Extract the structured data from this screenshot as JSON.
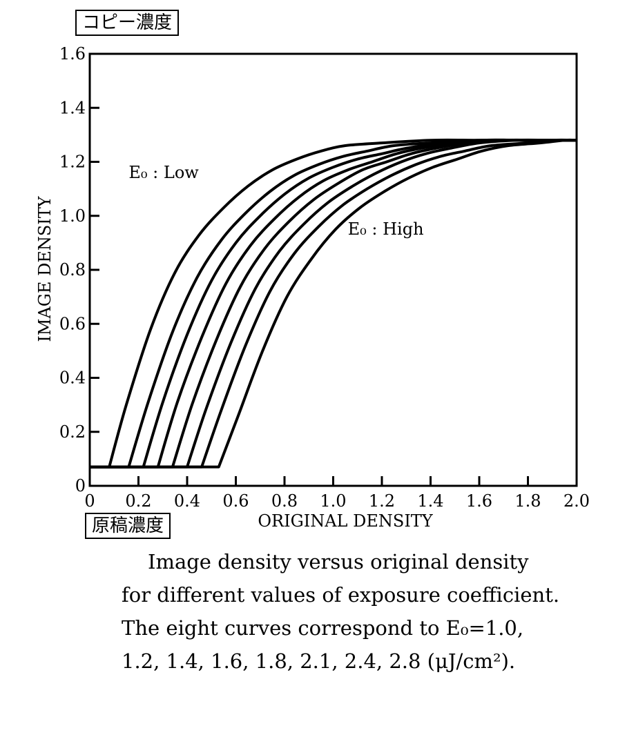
{
  "chart_data": {
    "type": "line",
    "ylabel": "IMAGE DENSITY",
    "xlabel": "ORIGINAL DENSITY",
    "ylabel_jp": "コピー濃度",
    "xlabel_jp": "原稿濃度",
    "xlim": [
      0,
      2.0
    ],
    "ylim": [
      0,
      1.6
    ],
    "x_ticks": [
      "0",
      "0.2",
      "0.4",
      "0.6",
      "0.8",
      "1.0",
      "1.2",
      "1.4",
      "1.6",
      "1.8",
      "2.0"
    ],
    "y_ticks": [
      "0",
      "0.2",
      "0.4",
      "0.6",
      "0.8",
      "1.0",
      "1.2",
      "1.4",
      "1.6"
    ],
    "grid": false,
    "annotations": [
      {
        "text": "E₀ : Low",
        "x": 0.16,
        "y": 1.14
      },
      {
        "text": "E₀ : High",
        "x": 1.06,
        "y": 0.93
      }
    ],
    "series": [
      {
        "x": [
          0,
          0.08,
          0.15,
          0.25,
          0.35,
          0.45,
          0.55,
          0.65,
          0.75,
          0.85,
          0.95,
          1.05,
          1.2,
          1.4,
          1.6,
          1.8,
          2.0
        ],
        "values": [
          0.07,
          0.07,
          0.3,
          0.58,
          0.79,
          0.93,
          1.03,
          1.11,
          1.17,
          1.21,
          1.24,
          1.26,
          1.27,
          1.28,
          1.28,
          1.28,
          1.28
        ]
      },
      {
        "x": [
          0,
          0.16,
          0.24,
          0.34,
          0.44,
          0.54,
          0.64,
          0.74,
          0.84,
          0.94,
          1.04,
          1.14,
          1.25,
          1.4,
          1.6,
          1.8,
          2.0
        ],
        "values": [
          0.07,
          0.07,
          0.31,
          0.57,
          0.77,
          0.91,
          1.01,
          1.09,
          1.15,
          1.19,
          1.22,
          1.24,
          1.26,
          1.27,
          1.28,
          1.28,
          1.28
        ]
      },
      {
        "x": [
          0,
          0.22,
          0.3,
          0.4,
          0.5,
          0.6,
          0.7,
          0.8,
          0.9,
          1.0,
          1.1,
          1.2,
          1.3,
          1.45,
          1.6,
          1.8,
          2.0
        ],
        "values": [
          0.07,
          0.07,
          0.31,
          0.56,
          0.76,
          0.9,
          1.0,
          1.08,
          1.14,
          1.18,
          1.21,
          1.23,
          1.25,
          1.27,
          1.28,
          1.28,
          1.28
        ]
      },
      {
        "x": [
          0,
          0.28,
          0.36,
          0.46,
          0.56,
          0.66,
          0.76,
          0.86,
          0.96,
          1.06,
          1.16,
          1.26,
          1.36,
          1.5,
          1.65,
          1.8,
          2.0
        ],
        "values": [
          0.07,
          0.07,
          0.31,
          0.55,
          0.75,
          0.89,
          0.99,
          1.07,
          1.13,
          1.17,
          1.2,
          1.23,
          1.25,
          1.27,
          1.28,
          1.28,
          1.28
        ]
      },
      {
        "x": [
          0,
          0.34,
          0.42,
          0.52,
          0.62,
          0.72,
          0.82,
          0.92,
          1.02,
          1.12,
          1.22,
          1.32,
          1.42,
          1.55,
          1.7,
          1.85,
          2.0
        ],
        "values": [
          0.07,
          0.07,
          0.3,
          0.54,
          0.74,
          0.88,
          0.98,
          1.06,
          1.12,
          1.17,
          1.2,
          1.23,
          1.25,
          1.27,
          1.28,
          1.28,
          1.28
        ]
      },
      {
        "x": [
          0,
          0.4,
          0.48,
          0.58,
          0.68,
          0.78,
          0.88,
          0.98,
          1.08,
          1.18,
          1.28,
          1.38,
          1.48,
          1.6,
          1.75,
          1.9,
          2.0
        ],
        "values": [
          0.07,
          0.07,
          0.29,
          0.53,
          0.73,
          0.87,
          0.97,
          1.05,
          1.11,
          1.16,
          1.2,
          1.23,
          1.25,
          1.27,
          1.28,
          1.28,
          1.28
        ]
      },
      {
        "x": [
          0,
          0.46,
          0.54,
          0.64,
          0.74,
          0.84,
          0.94,
          1.04,
          1.14,
          1.24,
          1.34,
          1.44,
          1.54,
          1.65,
          1.8,
          1.9,
          2.0
        ],
        "values": [
          0.07,
          0.07,
          0.28,
          0.52,
          0.72,
          0.86,
          0.96,
          1.04,
          1.1,
          1.15,
          1.19,
          1.22,
          1.24,
          1.26,
          1.27,
          1.28,
          1.28
        ]
      },
      {
        "x": [
          0,
          0.53,
          0.61,
          0.71,
          0.81,
          0.91,
          1.01,
          1.11,
          1.21,
          1.31,
          1.41,
          1.51,
          1.61,
          1.72,
          1.85,
          1.95,
          2.0
        ],
        "values": [
          0.07,
          0.07,
          0.26,
          0.5,
          0.7,
          0.84,
          0.95,
          1.03,
          1.09,
          1.14,
          1.18,
          1.21,
          1.24,
          1.26,
          1.27,
          1.28,
          1.28
        ]
      }
    ]
  },
  "caption": {
    "line1": "Image density versus original density",
    "line2": "for different values of exposure coefficient.",
    "line3": "The eight curves correspond to E₀=1.0,",
    "line4": "1.2, 1.4, 1.6, 1.8, 2.1, 2.4, 2.8 (μJ/cm²)."
  }
}
